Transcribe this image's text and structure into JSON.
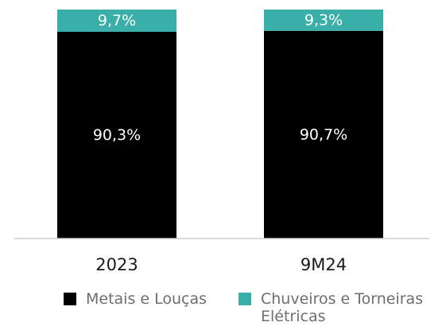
{
  "chart_data": {
    "type": "bar",
    "stacked": true,
    "percent": true,
    "categories": [
      "2023",
      "9M24"
    ],
    "series": [
      {
        "name": "Metais e Louças",
        "values": [
          90.3,
          90.7
        ],
        "labels": [
          "90,3%",
          "90,7%"
        ],
        "color": "#000000",
        "label_color": "#ffffff"
      },
      {
        "name": "Chuveiros e Torneiras Elétricas",
        "values": [
          9.7,
          9.3
        ],
        "labels": [
          "9,7%",
          "9,3%"
        ],
        "color": "#3aafa9",
        "label_color": "#ffffff"
      }
    ],
    "ylim": [
      0,
      100
    ],
    "grid": false,
    "legend_position": "bottom"
  }
}
